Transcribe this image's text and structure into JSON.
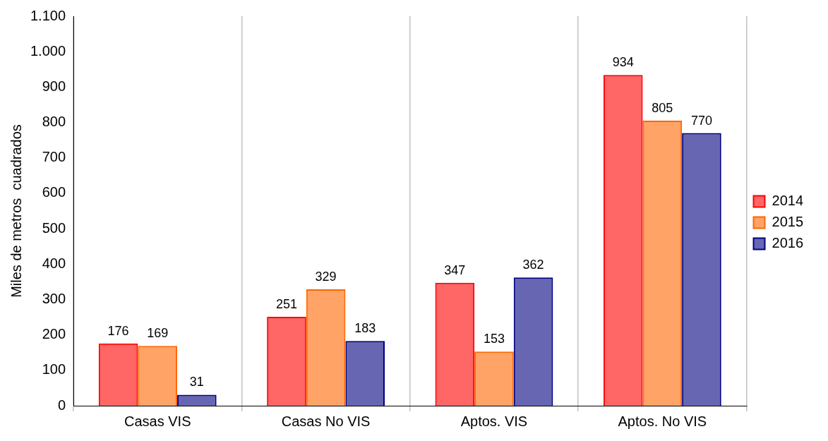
{
  "chart_data": {
    "type": "bar",
    "ylabel": "Miles de metros  cuadrados",
    "categories": [
      "Casas VIS",
      "Casas No VIS",
      "Aptos. VIS",
      "Aptos. No VIS"
    ],
    "series": [
      {
        "name": "2014",
        "color": "#ff0000",
        "values": [
          176,
          251,
          347,
          934
        ]
      },
      {
        "name": "2015",
        "color": "#ff6600",
        "values": [
          169,
          329,
          153,
          805
        ]
      },
      {
        "name": "2016",
        "color": "#000080",
        "values": [
          31,
          183,
          362,
          770
        ]
      }
    ],
    "ylim": [
      0,
      1100
    ],
    "yticks": [
      0,
      100,
      200,
      300,
      400,
      500,
      600,
      700,
      800,
      900,
      {
        "value": 1000,
        "label": "1.000"
      },
      {
        "value": 1100,
        "label": "1.100"
      }
    ],
    "grid": "x",
    "legend": "right",
    "data_labels": true
  }
}
